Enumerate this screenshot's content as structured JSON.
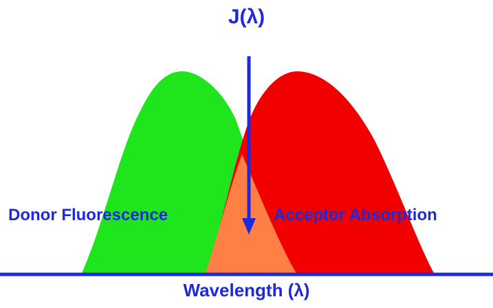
{
  "title": "J(λ)",
  "donor_label": "Donor Fluorescence",
  "acceptor_label": "Acceptor Absorption",
  "xaxis_label": "Wavelength (λ)",
  "colors": {
    "donor": "#1fe51c",
    "acceptor": "#f20000",
    "overlap": "#ff7f45",
    "text": "#1f29d9",
    "axis": "#1f29d9",
    "arrow": "#1f29d9"
  }
}
